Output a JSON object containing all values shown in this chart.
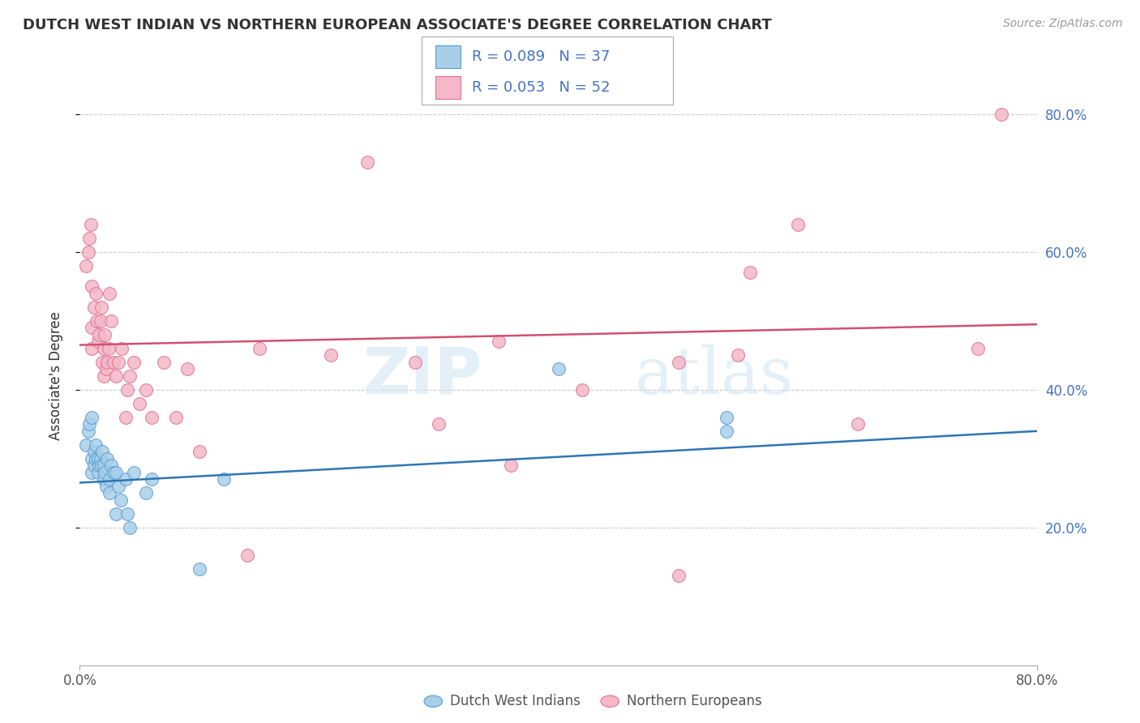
{
  "title": "DUTCH WEST INDIAN VS NORTHERN EUROPEAN ASSOCIATE'S DEGREE CORRELATION CHART",
  "source": "Source: ZipAtlas.com",
  "ylabel": "Associate's Degree",
  "xlim": [
    0.0,
    0.8
  ],
  "ylim": [
    0.0,
    0.84
  ],
  "ytick_positions": [
    0.2,
    0.4,
    0.6,
    0.8
  ],
  "blue_color": "#a8cfe8",
  "pink_color": "#f4b8c8",
  "blue_edge_color": "#5b9bd5",
  "pink_edge_color": "#e07090",
  "blue_line_color": "#2e75b6",
  "pink_line_color": "#d05070",
  "right_axis_color": "#4472c4",
  "background_color": "#ffffff",
  "grid_color": "#cccccc",
  "blue_x": [
    0.005,
    0.007,
    0.008,
    0.01,
    0.01,
    0.01,
    0.012,
    0.012,
    0.013,
    0.013,
    0.015,
    0.015,
    0.016,
    0.017,
    0.018,
    0.019,
    0.02,
    0.02,
    0.021,
    0.022,
    0.023,
    0.025,
    0.025,
    0.026,
    0.028,
    0.03,
    0.03,
    0.032,
    0.034,
    0.038,
    0.04,
    0.042,
    0.045,
    0.055,
    0.06,
    0.1,
    0.12,
    0.4,
    0.54,
    0.54
  ],
  "blue_y": [
    0.32,
    0.34,
    0.35,
    0.28,
    0.3,
    0.36,
    0.29,
    0.31,
    0.3,
    0.32,
    0.28,
    0.3,
    0.29,
    0.3,
    0.29,
    0.31,
    0.27,
    0.29,
    0.28,
    0.26,
    0.3,
    0.25,
    0.27,
    0.29,
    0.28,
    0.22,
    0.28,
    0.26,
    0.24,
    0.27,
    0.22,
    0.2,
    0.28,
    0.25,
    0.27,
    0.14,
    0.27,
    0.43,
    0.34,
    0.36
  ],
  "pink_x": [
    0.005,
    0.007,
    0.008,
    0.009,
    0.01,
    0.01,
    0.01,
    0.012,
    0.013,
    0.014,
    0.015,
    0.016,
    0.017,
    0.018,
    0.019,
    0.02,
    0.02,
    0.021,
    0.022,
    0.023,
    0.024,
    0.025,
    0.026,
    0.028,
    0.03,
    0.032,
    0.035,
    0.038,
    0.04,
    0.042,
    0.045,
    0.05,
    0.055,
    0.06,
    0.07,
    0.08,
    0.09,
    0.1,
    0.14,
    0.15,
    0.21,
    0.24,
    0.28,
    0.3,
    0.35,
    0.36,
    0.42,
    0.5,
    0.5,
    0.55,
    0.56,
    0.6,
    0.65,
    0.75,
    0.77
  ],
  "pink_y": [
    0.58,
    0.6,
    0.62,
    0.64,
    0.46,
    0.49,
    0.55,
    0.52,
    0.54,
    0.5,
    0.47,
    0.48,
    0.5,
    0.52,
    0.44,
    0.42,
    0.46,
    0.48,
    0.43,
    0.44,
    0.46,
    0.54,
    0.5,
    0.44,
    0.42,
    0.44,
    0.46,
    0.36,
    0.4,
    0.42,
    0.44,
    0.38,
    0.4,
    0.36,
    0.44,
    0.36,
    0.43,
    0.31,
    0.16,
    0.46,
    0.45,
    0.73,
    0.44,
    0.35,
    0.47,
    0.29,
    0.4,
    0.13,
    0.44,
    0.45,
    0.57,
    0.64,
    0.35,
    0.46,
    0.8
  ],
  "blue_trend_x": [
    0.0,
    0.8
  ],
  "blue_trend_y": [
    0.265,
    0.34
  ],
  "pink_trend_x": [
    0.0,
    0.8
  ],
  "pink_trend_y": [
    0.465,
    0.495
  ]
}
